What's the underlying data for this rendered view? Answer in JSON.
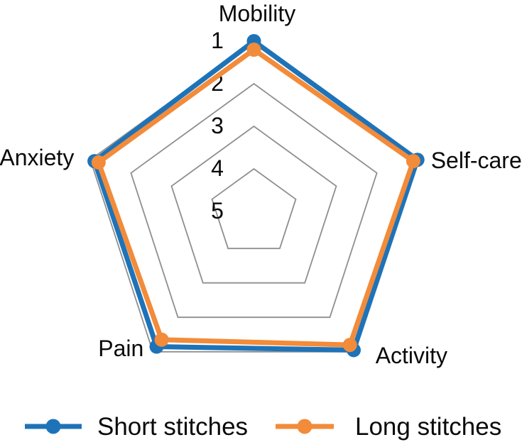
{
  "figure": {
    "background": "#ffffff",
    "text_color": "#0a0a0a"
  },
  "chart_data": {
    "type": "radar",
    "title": "",
    "categories": [
      "Mobility",
      "Self-care",
      "Activity",
      "Pain",
      "Anxiety"
    ],
    "scale": {
      "min": 1,
      "max": 5,
      "direction": "1-at-outer-edge-5-at-center",
      "rings": [
        1,
        2,
        3,
        4,
        5
      ],
      "ring_labels": [
        "1",
        "2",
        "3",
        "4",
        "5"
      ]
    },
    "series": [
      {
        "name": "Short stitches",
        "color": "#1e73b8",
        "marker": "circle",
        "values": [
          1.0,
          1.0,
          1.05,
          1.15,
          1.1
        ]
      },
      {
        "name": "Long stitches",
        "color": "#f28b3a",
        "marker": "circle",
        "values": [
          1.2,
          1.1,
          1.2,
          1.35,
          1.2
        ]
      }
    ],
    "grid": {
      "color": "#8f8f8f",
      "show_spokes": false
    },
    "legend": {
      "position": "bottom"
    }
  }
}
